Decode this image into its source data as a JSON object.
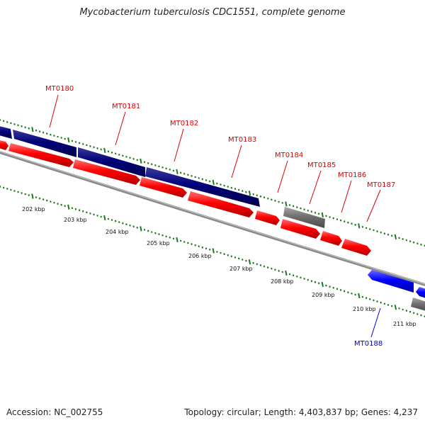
{
  "title": "Mycobacterium tuberculosis CDC1551, complete genome",
  "accession": "Accession: NC_002755",
  "topology": "Topology: circular; Length: 4,403,837 bp; Genes: 4,237",
  "colors": {
    "forward_cds": "#ff0000",
    "reverse_cds": "#0000ff",
    "dark_block": "#00007a",
    "other_gene": "#707070",
    "tick": "#1a7a1a",
    "backbone": "#888888"
  },
  "kbp_labels": [
    "202 kbp",
    "203 kbp",
    "204 kbp",
    "205 kbp",
    "206 kbp",
    "207 kbp",
    "208 kbp",
    "209 kbp",
    "210 kbp",
    "211 kbp"
  ],
  "gene_labels": [
    {
      "name": "MT0180",
      "strand": "forward"
    },
    {
      "name": "MT0181",
      "strand": "forward"
    },
    {
      "name": "MT0182",
      "strand": "forward"
    },
    {
      "name": "MT0183",
      "strand": "forward"
    },
    {
      "name": "MT0184",
      "strand": "forward"
    },
    {
      "name": "MT0185",
      "strand": "forward"
    },
    {
      "name": "MT0186",
      "strand": "forward"
    },
    {
      "name": "MT0187",
      "strand": "forward"
    },
    {
      "name": "MT0188",
      "strand": "reverse"
    }
  ]
}
